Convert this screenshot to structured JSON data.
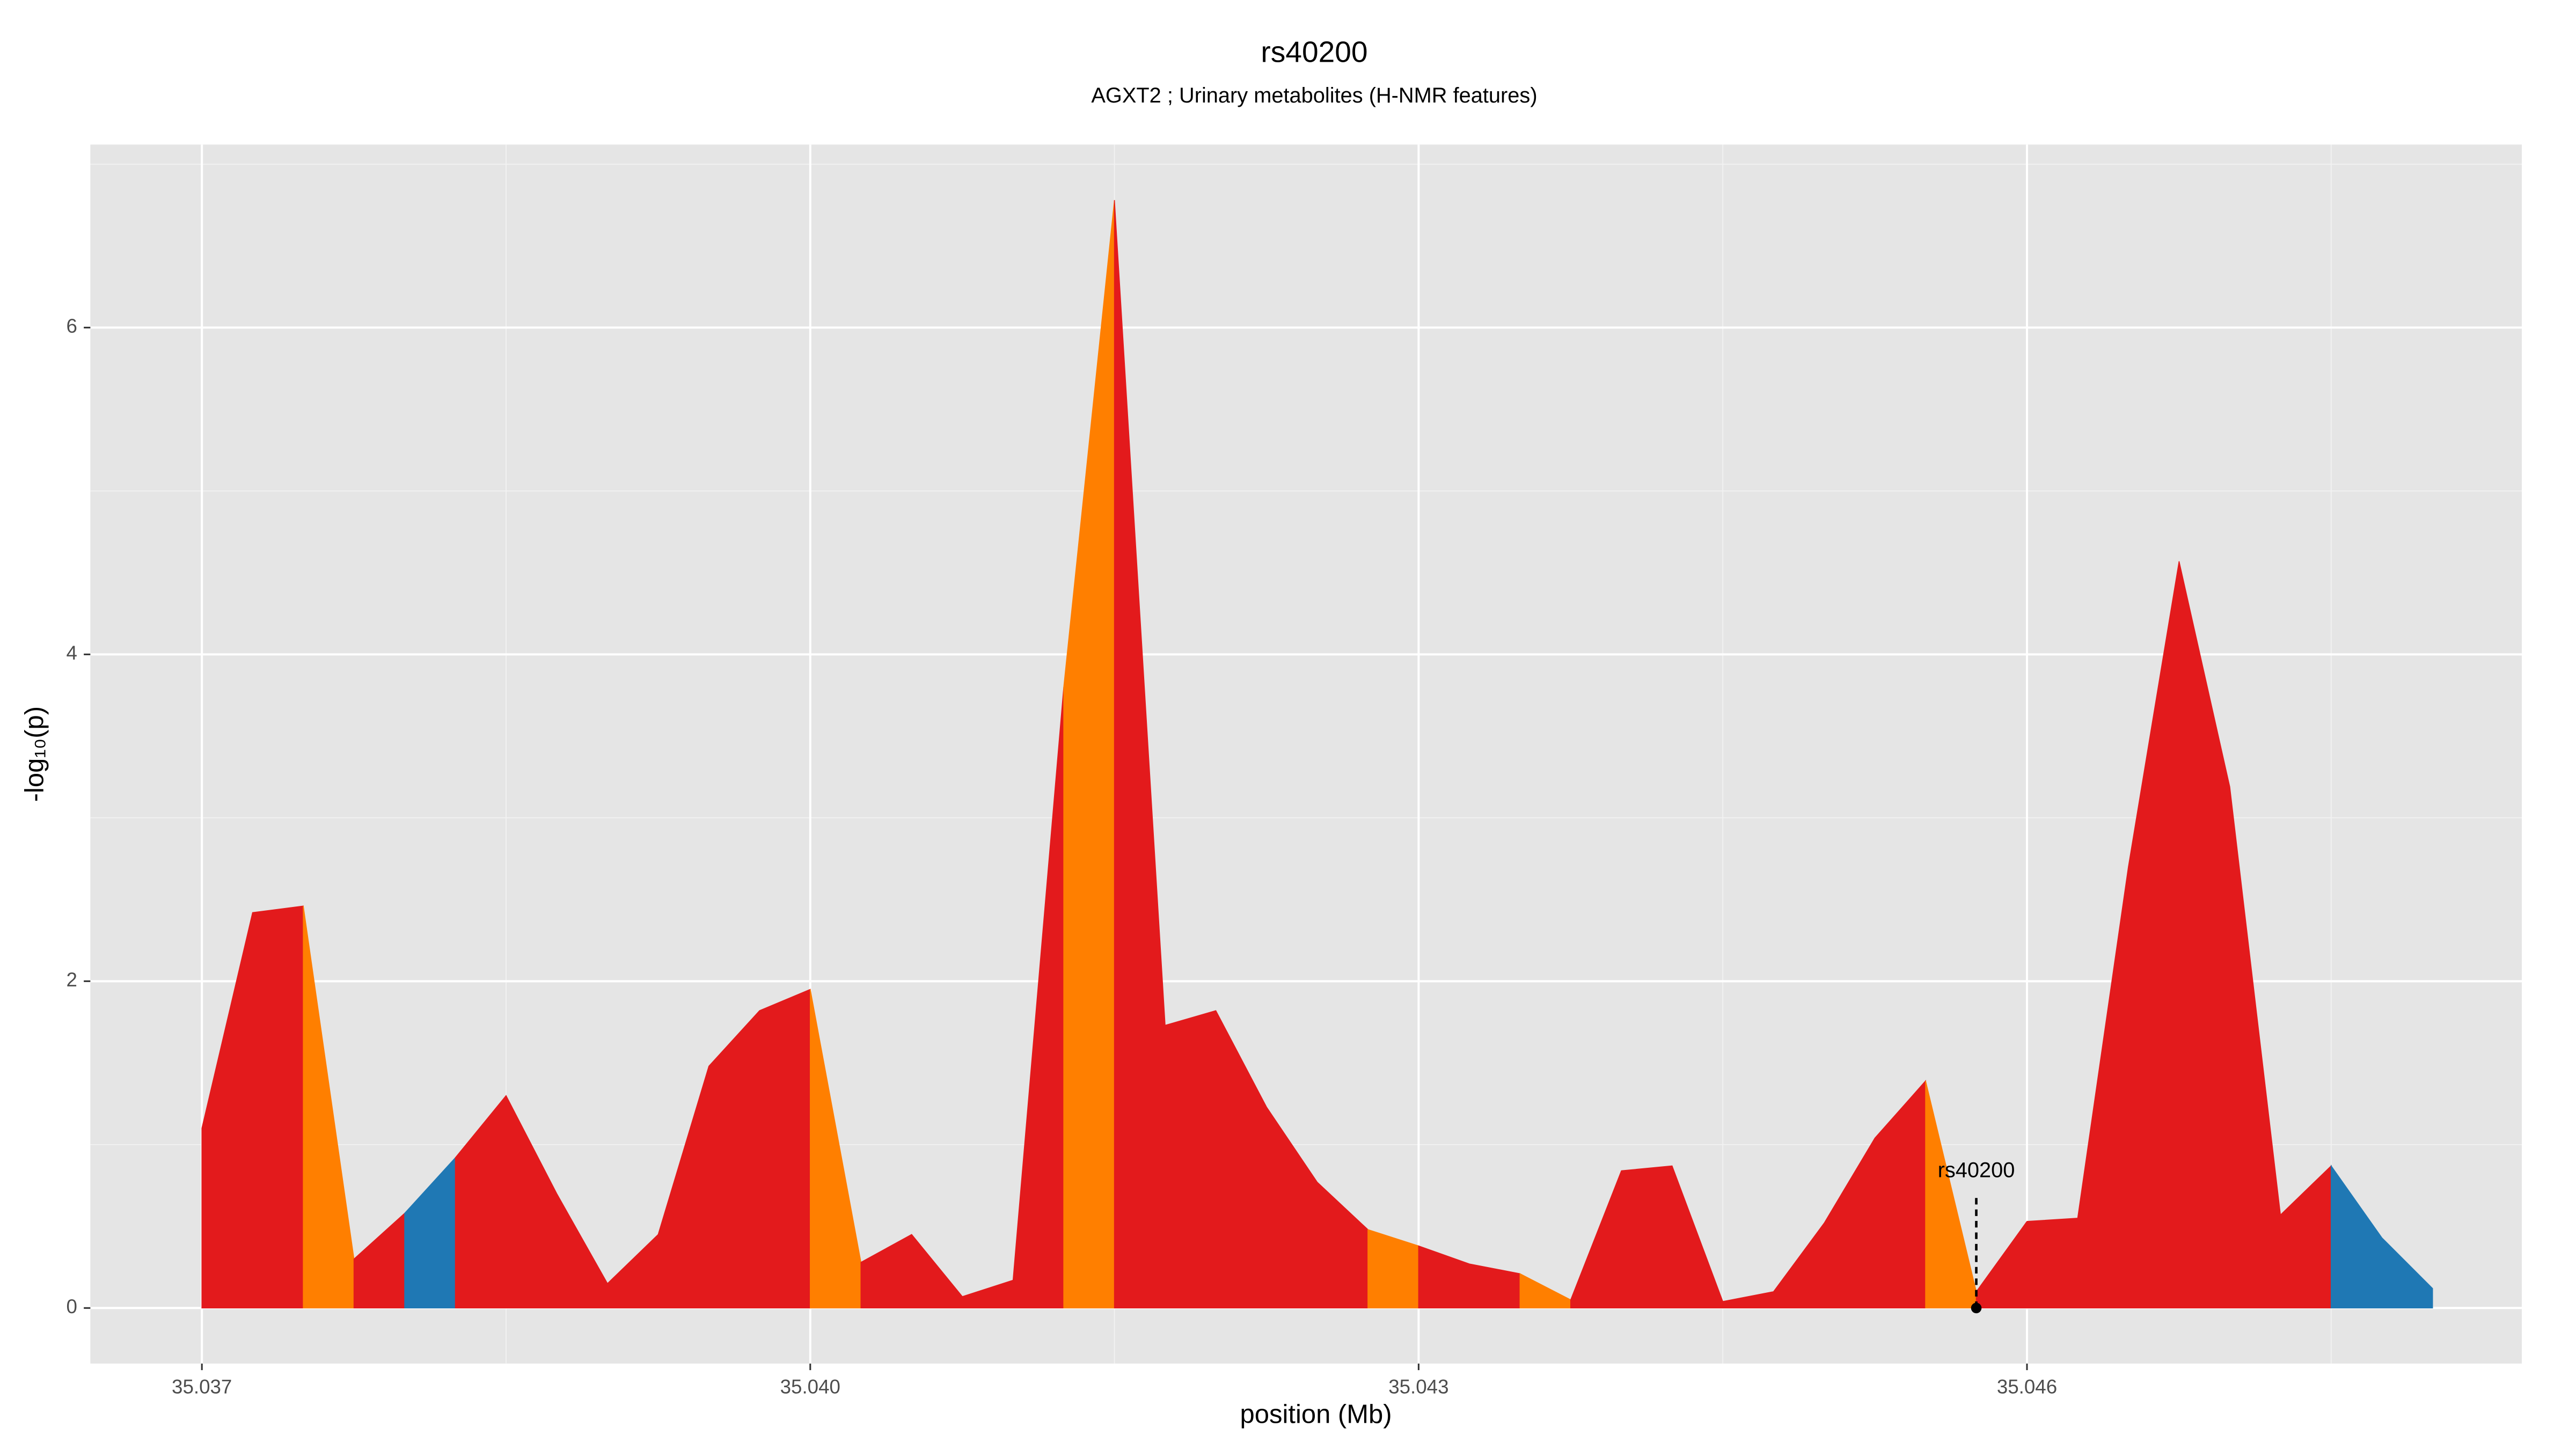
{
  "chart_data": {
    "type": "area",
    "title": "rs40200",
    "subtitle": "AGXT2 ; Urinary metabolites (H-NMR features)",
    "xlabel": "position (Mb)",
    "ylabel": "-log₁₀(p)",
    "xlim": [
      35.03645,
      35.04844
    ],
    "ylim": [
      -0.34,
      7.12
    ],
    "xticks": [
      35.037,
      {
        "value": 35.04,
        "label": "35.040"
      },
      35.043,
      35.046
    ],
    "yticks": [
      0,
      2,
      4,
      6
    ],
    "grid": true,
    "series": [
      {
        "color": "#e31a1c",
        "x": [
          35.037,
          35.03725,
          35.0375
        ],
        "values": [
          1.1,
          2.42,
          2.46
        ]
      },
      {
        "color": "#ff7f00",
        "x": [
          35.0375,
          35.03775
        ],
        "values": [
          2.46,
          0.3
        ]
      },
      {
        "color": "#e31a1c",
        "x": [
          35.03775,
          35.038
        ],
        "values": [
          0.3,
          0.58
        ]
      },
      {
        "color": "#1f78b4",
        "x": [
          35.038,
          35.03825
        ],
        "values": [
          0.58,
          0.92
        ]
      },
      {
        "color": "#e31a1c",
        "x": [
          35.03825,
          35.0385,
          35.03875,
          35.039,
          35.03925,
          35.0395,
          35.03975,
          35.04
        ],
        "values": [
          0.92,
          1.3,
          0.7,
          0.15,
          0.45,
          1.48,
          1.82,
          1.95
        ]
      },
      {
        "color": "#ff7f00",
        "x": [
          35.04,
          35.04025
        ],
        "values": [
          1.95,
          0.28
        ]
      },
      {
        "color": "#e31a1c",
        "x": [
          35.04025,
          35.0405,
          35.04075,
          35.041,
          35.04125
        ],
        "values": [
          0.28,
          0.45,
          0.07,
          0.17,
          3.8
        ]
      },
      {
        "color": "#ff7f00",
        "x": [
          35.04125,
          35.0415
        ],
        "values": [
          3.8,
          6.78
        ]
      },
      {
        "color": "#e31a1c",
        "x": [
          35.0415,
          35.04175,
          35.042,
          35.04225,
          35.0425,
          35.04275
        ],
        "values": [
          6.78,
          1.73,
          1.82,
          1.23,
          0.77,
          0.48
        ]
      },
      {
        "color": "#ff7f00",
        "x": [
          35.04275,
          35.043
        ],
        "values": [
          0.48,
          0.38
        ]
      },
      {
        "color": "#e31a1c",
        "x": [
          35.043,
          35.04325,
          35.0435
        ],
        "values": [
          0.38,
          0.27,
          0.21
        ]
      },
      {
        "color": "#ff7f00",
        "x": [
          35.0435,
          35.04375
        ],
        "values": [
          0.21,
          0.05
        ]
      },
      {
        "color": "#e31a1c",
        "x": [
          35.04375,
          35.044,
          35.04425,
          35.0445,
          35.04475,
          35.045,
          35.04525,
          35.0455
        ],
        "values": [
          0.05,
          0.84,
          0.87,
          0.04,
          0.1,
          0.52,
          1.04,
          1.39
        ]
      },
      {
        "color": "#ff7f00",
        "x": [
          35.0455,
          35.04575
        ],
        "values": [
          1.39,
          0.1
        ]
      },
      {
        "color": "#e31a1c",
        "x": [
          35.04575,
          35.046,
          35.04625,
          35.0465,
          35.04675,
          35.047,
          35.04725,
          35.0475
        ],
        "values": [
          0.1,
          0.53,
          0.55,
          2.7,
          4.57,
          3.19,
          0.57,
          0.87
        ]
      },
      {
        "color": "#1f78b4",
        "x": [
          35.0475,
          35.04775,
          35.048
        ],
        "values": [
          0.87,
          0.43,
          0.12
        ]
      }
    ],
    "annotation": {
      "text": "rs40200",
      "x": 35.04575,
      "y": 0
    }
  }
}
